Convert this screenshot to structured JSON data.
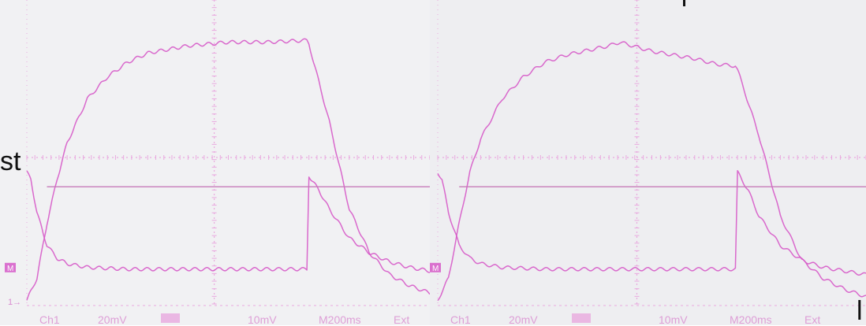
{
  "panels": [
    {
      "id": "left",
      "status_bar": {
        "channel": "Ch1",
        "ch1_scale": "20mV",
        "math_scale": "10mV",
        "timebase": "M200ms",
        "trigger": "Ext"
      },
      "ref_marker_left": "M",
      "ref_marker_bottom": "1→"
    },
    {
      "id": "right",
      "status_bar": {
        "channel": "Ch1",
        "ch1_scale": "20mV",
        "math_scale": "10mV",
        "timebase": "M200ms",
        "trigger": "Ext"
      },
      "ref_marker_left": "M",
      "ref_marker_bottom": ""
    }
  ],
  "overlay_fragments": {
    "left_text": "st",
    "right_text": "l"
  },
  "colors": {
    "trace": "#d659c8",
    "grid": "#e9a9df",
    "baseline": "#c77bb9",
    "screen": "#f1f1f3",
    "status_text": "#d98bd0"
  },
  "chart_data": [
    {
      "type": "line",
      "title": "",
      "xlabel": "",
      "ylabel": "",
      "xlim": [
        0,
        2.0
      ],
      "ylim": [
        -4,
        4
      ],
      "x_unit": "s",
      "y_unit": "div",
      "grid": true,
      "series": [
        {
          "x": [
            0.0,
            0.05,
            0.1,
            0.15,
            0.2,
            0.3,
            0.4,
            0.5,
            0.6,
            0.8,
            1.0,
            1.2,
            1.39,
            1.4,
            1.5,
            1.6,
            1.7,
            1.8,
            1.9,
            2.0
          ],
          "values": [
            -3.9,
            -3.3,
            -1.8,
            -0.6,
            0.4,
            1.6,
            2.2,
            2.6,
            2.85,
            3.05,
            3.15,
            3.15,
            3.2,
            3.1,
            1.0,
            -1.4,
            -2.6,
            -3.2,
            -3.5,
            -3.7
          ]
        },
        {
          "x": [
            0.0,
            0.02,
            0.05,
            0.1,
            0.15,
            0.2,
            0.3,
            0.5,
            0.8,
            1.0,
            1.2,
            1.39,
            1.4,
            1.45,
            1.5,
            1.6,
            1.7,
            1.8,
            1.9,
            2.0
          ],
          "values": [
            -0.4,
            -0.6,
            -1.5,
            -2.4,
            -2.75,
            -2.9,
            -3.0,
            -3.05,
            -3.05,
            -3.05,
            -3.05,
            -3.05,
            -0.5,
            -0.9,
            -1.4,
            -2.2,
            -2.6,
            -2.85,
            -3.0,
            -3.1
          ]
        },
        {
          "x": [
            0.1,
            2.0
          ],
          "values": [
            -0.8,
            -0.8
          ]
        }
      ]
    },
    {
      "type": "line",
      "title": "",
      "xlabel": "",
      "ylabel": "",
      "xlim": [
        0,
        2.0
      ],
      "ylim": [
        -4,
        4
      ],
      "x_unit": "s",
      "y_unit": "div",
      "grid": true,
      "series": [
        {
          "x": [
            0.0,
            0.05,
            0.1,
            0.15,
            0.2,
            0.3,
            0.4,
            0.5,
            0.6,
            0.8,
            0.85,
            1.0,
            1.2,
            1.3,
            1.39,
            1.4,
            1.5,
            1.6,
            1.7,
            1.8,
            1.9,
            2.0
          ],
          "values": [
            -3.9,
            -3.3,
            -1.8,
            -0.4,
            0.5,
            1.6,
            2.2,
            2.6,
            2.8,
            3.05,
            3.15,
            2.9,
            2.7,
            2.55,
            2.5,
            2.4,
            0.6,
            -1.6,
            -2.8,
            -3.3,
            -3.6,
            -3.8
          ]
        },
        {
          "x": [
            0.0,
            0.02,
            0.05,
            0.1,
            0.15,
            0.2,
            0.3,
            0.5,
            0.8,
            1.0,
            1.2,
            1.39,
            1.4,
            1.45,
            1.5,
            1.6,
            1.7,
            1.8,
            1.9,
            2.0
          ],
          "values": [
            -0.4,
            -0.6,
            -1.5,
            -2.4,
            -2.75,
            -2.9,
            -3.0,
            -3.05,
            -3.05,
            -3.05,
            -3.05,
            -3.05,
            -0.4,
            -0.9,
            -1.6,
            -2.4,
            -2.8,
            -3.0,
            -3.1,
            -3.2
          ]
        },
        {
          "x": [
            0.1,
            2.0
          ],
          "values": [
            -0.8,
            -0.8
          ]
        }
      ]
    }
  ]
}
